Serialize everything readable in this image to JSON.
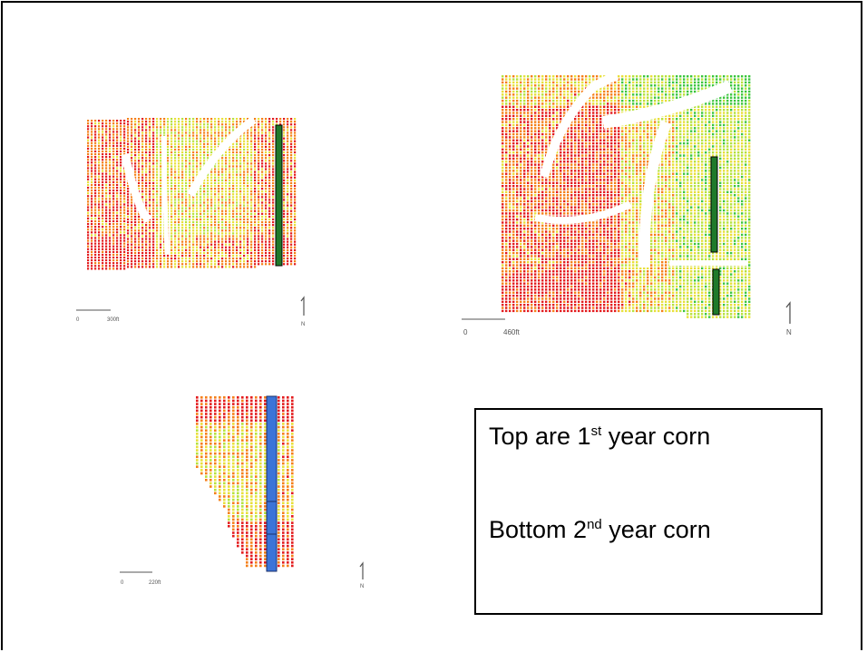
{
  "maps": {
    "top_left": {
      "scale_start": "0",
      "scale_end": "300ft",
      "north_label": "N"
    },
    "top_right": {
      "scale_start": "0",
      "scale_end": "460ft",
      "north_label": "N"
    },
    "bottom": {
      "scale_start": "0",
      "scale_end": "220ft",
      "north_label": "N"
    }
  },
  "legend": {
    "line1_prefix": "Top are 1",
    "line1_sup": "st",
    "line1_suffix": " year corn",
    "line2_prefix": "Bottom 2",
    "line2_sup": "nd",
    "line2_suffix": " year corn"
  },
  "colors": {
    "red": "#e31a1c",
    "orange": "#f57f17",
    "yellow": "#e8e03a",
    "yellow_green": "#b6e23c",
    "green": "#3cc63c",
    "strip_green": "#1f7a2b",
    "strip_blue": "#3b74d8"
  }
}
